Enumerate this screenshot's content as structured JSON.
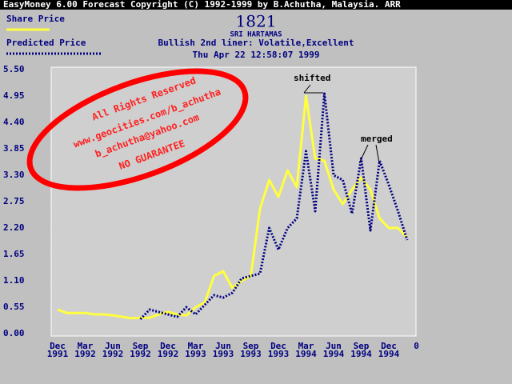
{
  "window_title": "EasyMoney 6.00 Forecast Copyright (C) 1992-1999 by B.Achutha, Malaysia. ARR",
  "chart_data": {
    "type": "line",
    "title": "1821",
    "subtitle": "SRI HARTAMAS",
    "description": "Bullish  2nd liner: Volatile,Excellent",
    "timestamp": "Thu Apr 22 12:58:07 1999",
    "x": [
      0,
      1,
      2,
      3,
      4,
      5,
      6,
      7,
      8,
      9,
      10,
      11,
      12,
      13,
      14,
      15,
      16,
      17,
      18,
      19,
      20,
      21,
      22,
      23,
      24,
      25,
      26,
      27,
      28,
      29,
      30,
      31,
      32,
      33,
      34,
      35,
      36,
      37,
      38
    ],
    "xlim": [
      0,
      39
    ],
    "xticks": [
      {
        "value": 0,
        "label": "Dec",
        "year": "1991"
      },
      {
        "value": 3,
        "label": "Mar",
        "year": "1992"
      },
      {
        "value": 6,
        "label": "Jun",
        "year": "1992"
      },
      {
        "value": 9,
        "label": "Sep",
        "year": "1992"
      },
      {
        "value": 12,
        "label": "Dec",
        "year": "1992"
      },
      {
        "value": 15,
        "label": "Mar",
        "year": "1993"
      },
      {
        "value": 18,
        "label": "Jun",
        "year": "1993"
      },
      {
        "value": 21,
        "label": "Sep",
        "year": "1993"
      },
      {
        "value": 24,
        "label": "Dec",
        "year": "1993"
      },
      {
        "value": 27,
        "label": "Mar",
        "year": "1994"
      },
      {
        "value": 30,
        "label": "Jun",
        "year": "1994"
      },
      {
        "value": 33,
        "label": "Sep",
        "year": "1994"
      },
      {
        "value": 36,
        "label": "Dec",
        "year": "1994"
      },
      {
        "value": 39,
        "label": "0"
      }
    ],
    "ylim": [
      0,
      5.5
    ],
    "yticks": [
      {
        "value": 0,
        "label": "0.00"
      },
      {
        "value": 0.55,
        "label": "0.55"
      },
      {
        "value": 1.1,
        "label": "1.10"
      },
      {
        "value": 1.65,
        "label": "1.65"
      },
      {
        "value": 2.2,
        "label": "2.20"
      },
      {
        "value": 2.75,
        "label": "2.75"
      },
      {
        "value": 3.3,
        "label": "3.30"
      },
      {
        "value": 3.85,
        "label": "3.85"
      },
      {
        "value": 4.4,
        "label": "4.40"
      },
      {
        "value": 4.95,
        "label": "4.95"
      },
      {
        "value": 5.5,
        "label": "5.50"
      }
    ],
    "series": [
      {
        "name": "Share Price",
        "color": "#ffff40",
        "style": "solid",
        "values": [
          0.5,
          0.43,
          0.43,
          0.43,
          0.4,
          0.4,
          0.38,
          0.35,
          0.32,
          0.33,
          0.33,
          0.4,
          0.45,
          0.4,
          0.38,
          0.55,
          0.65,
          1.2,
          1.3,
          0.95,
          1.1,
          1.2,
          2.6,
          3.2,
          2.85,
          3.4,
          3.05,
          4.95,
          3.65,
          3.6,
          3.0,
          2.7,
          3.0,
          3.25,
          3.0,
          2.4,
          2.2,
          2.2,
          2.0
        ]
      },
      {
        "name": "Predicted Price",
        "color": "#000080",
        "style": "dotted",
        "values": [
          null,
          null,
          null,
          null,
          null,
          null,
          null,
          null,
          null,
          0.3,
          0.5,
          0.45,
          0.4,
          0.35,
          0.55,
          0.4,
          0.6,
          0.8,
          0.75,
          0.85,
          1.15,
          1.2,
          1.25,
          2.2,
          1.75,
          2.2,
          2.4,
          3.8,
          2.55,
          5.0,
          3.3,
          3.2,
          2.5,
          3.65,
          2.15,
          3.6,
          3.1,
          2.55,
          1.95
        ]
      }
    ],
    "annotations": [
      "shifted",
      "merged"
    ],
    "watermark": [
      "All Rights Reserved",
      "www.geocities.com/b_achutha",
      "b_achutha@yahoo.com",
      "NO GUARANTEE"
    ]
  }
}
